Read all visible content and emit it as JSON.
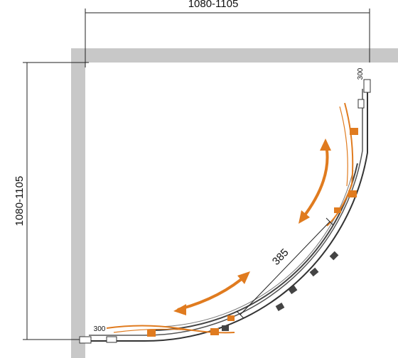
{
  "dimensions": {
    "width": "1080-1105",
    "depth": "1080-1105",
    "top_panel": "300",
    "bottom_panel": "300",
    "opening": "385"
  }
}
